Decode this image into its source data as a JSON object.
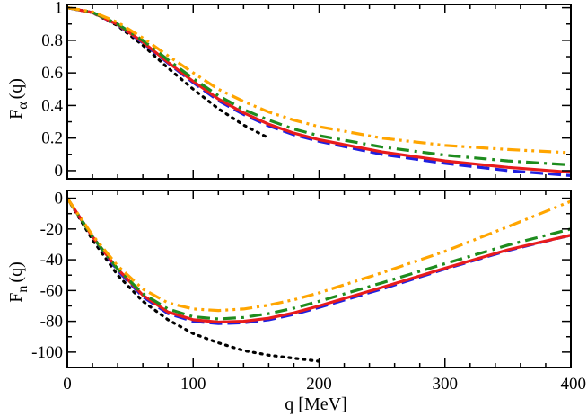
{
  "chart_data": [
    {
      "type": "line",
      "panel": "top",
      "ylabel": "Fα(q)",
      "ylabel_main": "F",
      "ylabel_sub": "α",
      "ylabel_arg": "(q)",
      "xlim": [
        0,
        400
      ],
      "ylim": [
        -0.05,
        1.02
      ],
      "yticks": [
        0,
        0.2,
        0.4,
        0.6,
        0.8,
        1
      ],
      "ytick_labels": [
        "0",
        "0.2",
        "0.4",
        "0.6",
        "0.8",
        "1"
      ],
      "x": [
        0,
        20,
        40,
        60,
        80,
        100,
        120,
        140,
        160,
        180,
        200,
        250,
        300,
        350,
        400
      ],
      "series": [
        {
          "name": "black-dotted",
          "color": "#000000",
          "dash": "dotted",
          "x": [
            0,
            20,
            40,
            60,
            80,
            100,
            120,
            140,
            160
          ],
          "values": [
            1.0,
            0.97,
            0.89,
            0.77,
            0.63,
            0.5,
            0.38,
            0.28,
            0.2
          ]
        },
        {
          "name": "blue-dashed",
          "color": "#2020e0",
          "dash": "dashed",
          "values": [
            1.0,
            0.97,
            0.895,
            0.785,
            0.66,
            0.54,
            0.43,
            0.345,
            0.275,
            0.22,
            0.18,
            0.1,
            0.045,
            0.0,
            -0.03
          ]
        },
        {
          "name": "red-solid",
          "color": "#e81c1c",
          "dash": "solid",
          "values": [
            1.0,
            0.97,
            0.897,
            0.79,
            0.665,
            0.548,
            0.44,
            0.355,
            0.285,
            0.23,
            0.19,
            0.115,
            0.06,
            0.02,
            -0.01
          ]
        },
        {
          "name": "green-dashdot",
          "color": "#1e8c1e",
          "dash": "dashdot",
          "values": [
            1.0,
            0.972,
            0.9,
            0.8,
            0.68,
            0.565,
            0.46,
            0.375,
            0.31,
            0.255,
            0.215,
            0.145,
            0.095,
            0.06,
            0.035
          ]
        },
        {
          "name": "orange-dashdotdot",
          "color": "#ffa500",
          "dash": "dashdotdot",
          "values": [
            1.0,
            0.975,
            0.91,
            0.815,
            0.705,
            0.6,
            0.5,
            0.425,
            0.36,
            0.31,
            0.27,
            0.2,
            0.155,
            0.13,
            0.11
          ]
        }
      ]
    },
    {
      "type": "line",
      "panel": "bottom",
      "xlabel": "q [MeV]",
      "ylabel": "Fn(q)",
      "ylabel_main": "F",
      "ylabel_sub": "n",
      "ylabel_arg": "(q)",
      "xlim": [
        0,
        400
      ],
      "ylim": [
        -110,
        5
      ],
      "xticks": [
        0,
        100,
        200,
        300,
        400
      ],
      "xtick_labels": [
        "0",
        "100",
        "200",
        "300",
        "400"
      ],
      "yticks": [
        0,
        -20,
        -40,
        -60,
        -80,
        -100
      ],
      "ytick_labels": [
        "0",
        "-20",
        "-40",
        "-60",
        "-80",
        "-100"
      ],
      "x": [
        0,
        20,
        40,
        60,
        80,
        100,
        120,
        140,
        160,
        180,
        200,
        250,
        300,
        350,
        400
      ],
      "series": [
        {
          "name": "black-dotted",
          "color": "#000000",
          "dash": "dotted",
          "x": [
            0,
            20,
            40,
            60,
            80,
            100,
            120,
            140,
            160,
            180,
            200
          ],
          "values": [
            0,
            -27,
            -50,
            -67,
            -79,
            -88,
            -94,
            -99,
            -102,
            -104,
            -106
          ]
        },
        {
          "name": "blue-dashed",
          "color": "#2020e0",
          "dash": "dashed",
          "values": [
            0,
            -25,
            -47,
            -64,
            -75,
            -80,
            -81.5,
            -81,
            -79,
            -75.5,
            -71,
            -59,
            -46,
            -34,
            -24
          ]
        },
        {
          "name": "red-solid",
          "color": "#e81c1c",
          "dash": "solid",
          "values": [
            0,
            -25,
            -46,
            -63,
            -74,
            -79,
            -80.5,
            -80,
            -78,
            -74.5,
            -70,
            -58,
            -45.5,
            -33.5,
            -24
          ]
        },
        {
          "name": "green-dashdot",
          "color": "#1e8c1e",
          "dash": "dashdot",
          "values": [
            0,
            -25,
            -46,
            -62,
            -72,
            -77,
            -78.5,
            -77.5,
            -75,
            -71.5,
            -67,
            -55,
            -42.5,
            -30.5,
            -20
          ]
        },
        {
          "name": "orange-dashdotdot",
          "color": "#ffa500",
          "dash": "dashdotdot",
          "values": [
            0,
            -24,
            -44,
            -59,
            -68,
            -72,
            -73,
            -72,
            -69.5,
            -66,
            -61.5,
            -48.5,
            -34.5,
            -18.5,
            -2
          ]
        }
      ]
    }
  ]
}
